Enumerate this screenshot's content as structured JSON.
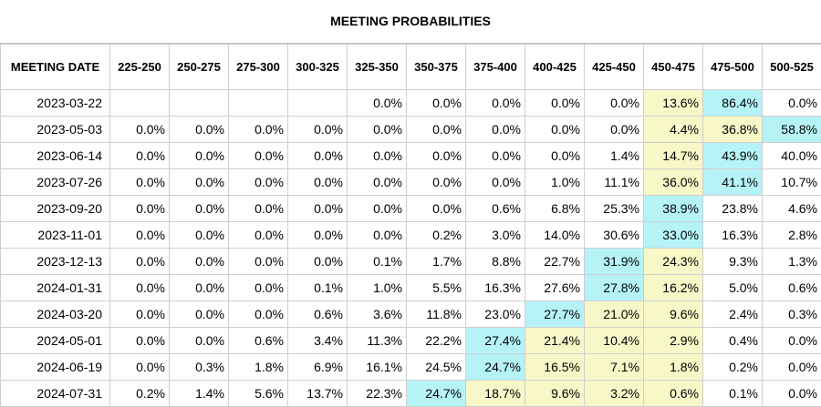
{
  "title": "MEETING PROBABILITIES",
  "colors": {
    "max_highlight": "#b5f3f7",
    "second_highlight": "#f7f7c8",
    "border": "#cfcfcf"
  },
  "chart_data": {
    "type": "table",
    "title": "MEETING PROBABILITIES",
    "row_header_label": "MEETING DATE",
    "columns": [
      "225-250",
      "250-275",
      "275-300",
      "300-325",
      "325-350",
      "350-375",
      "375-400",
      "400-425",
      "425-450",
      "450-475",
      "475-500",
      "500-525"
    ],
    "rows": [
      {
        "date": "2023-03-22",
        "values": [
          "",
          "",
          "",
          "",
          "0.0%",
          "0.0%",
          "0.0%",
          "0.0%",
          "0.0%",
          "13.6%",
          "86.4%",
          "0.0%"
        ],
        "highlight": {
          "9": "yellow",
          "10": "blue"
        }
      },
      {
        "date": "2023-05-03",
        "values": [
          "0.0%",
          "0.0%",
          "0.0%",
          "0.0%",
          "0.0%",
          "0.0%",
          "0.0%",
          "0.0%",
          "0.0%",
          "4.4%",
          "36.8%",
          "58.8%"
        ],
        "highlight": {
          "9": "yellow",
          "10": "yellow",
          "11": "blue"
        }
      },
      {
        "date": "2023-06-14",
        "values": [
          "0.0%",
          "0.0%",
          "0.0%",
          "0.0%",
          "0.0%",
          "0.0%",
          "0.0%",
          "0.0%",
          "1.4%",
          "14.7%",
          "43.9%",
          "40.0%"
        ],
        "highlight": {
          "9": "yellow",
          "10": "blue"
        }
      },
      {
        "date": "2023-07-26",
        "values": [
          "0.0%",
          "0.0%",
          "0.0%",
          "0.0%",
          "0.0%",
          "0.0%",
          "0.0%",
          "1.0%",
          "11.1%",
          "36.0%",
          "41.1%",
          "10.7%"
        ],
        "highlight": {
          "9": "yellow",
          "10": "blue"
        }
      },
      {
        "date": "2023-09-20",
        "values": [
          "0.0%",
          "0.0%",
          "0.0%",
          "0.0%",
          "0.0%",
          "0.0%",
          "0.6%",
          "6.8%",
          "25.3%",
          "38.9%",
          "23.8%",
          "4.6%"
        ],
        "highlight": {
          "9": "blue"
        }
      },
      {
        "date": "2023-11-01",
        "values": [
          "0.0%",
          "0.0%",
          "0.0%",
          "0.0%",
          "0.0%",
          "0.2%",
          "3.0%",
          "14.0%",
          "30.6%",
          "33.0%",
          "16.3%",
          "2.8%"
        ],
        "highlight": {
          "9": "blue"
        }
      },
      {
        "date": "2023-12-13",
        "values": [
          "0.0%",
          "0.0%",
          "0.0%",
          "0.0%",
          "0.1%",
          "1.7%",
          "8.8%",
          "22.7%",
          "31.9%",
          "24.3%",
          "9.3%",
          "1.3%"
        ],
        "highlight": {
          "8": "blue",
          "9": "yellow"
        }
      },
      {
        "date": "2024-01-31",
        "values": [
          "0.0%",
          "0.0%",
          "0.0%",
          "0.1%",
          "1.0%",
          "5.5%",
          "16.3%",
          "27.6%",
          "27.8%",
          "16.2%",
          "5.0%",
          "0.6%"
        ],
        "highlight": {
          "8": "blue",
          "9": "yellow"
        }
      },
      {
        "date": "2024-03-20",
        "values": [
          "0.0%",
          "0.0%",
          "0.0%",
          "0.6%",
          "3.6%",
          "11.8%",
          "23.0%",
          "27.7%",
          "21.0%",
          "9.6%",
          "2.4%",
          "0.3%"
        ],
        "highlight": {
          "7": "blue",
          "8": "yellow",
          "9": "yellow"
        }
      },
      {
        "date": "2024-05-01",
        "values": [
          "0.0%",
          "0.0%",
          "0.6%",
          "3.4%",
          "11.3%",
          "22.2%",
          "27.4%",
          "21.4%",
          "10.4%",
          "2.9%",
          "0.4%",
          "0.0%"
        ],
        "highlight": {
          "6": "blue",
          "7": "yellow",
          "8": "yellow",
          "9": "yellow"
        }
      },
      {
        "date": "2024-06-19",
        "values": [
          "0.0%",
          "0.3%",
          "1.8%",
          "6.9%",
          "16.1%",
          "24.5%",
          "24.7%",
          "16.5%",
          "7.1%",
          "1.8%",
          "0.2%",
          "0.0%"
        ],
        "highlight": {
          "6": "blue",
          "7": "yellow",
          "8": "yellow",
          "9": "yellow"
        }
      },
      {
        "date": "2024-07-31",
        "values": [
          "0.2%",
          "1.4%",
          "5.6%",
          "13.7%",
          "22.3%",
          "24.7%",
          "18.7%",
          "9.6%",
          "3.2%",
          "0.6%",
          "0.1%",
          "0.0%"
        ],
        "highlight": {
          "5": "blue",
          "6": "yellow",
          "7": "yellow",
          "8": "yellow",
          "9": "yellow"
        }
      }
    ]
  }
}
